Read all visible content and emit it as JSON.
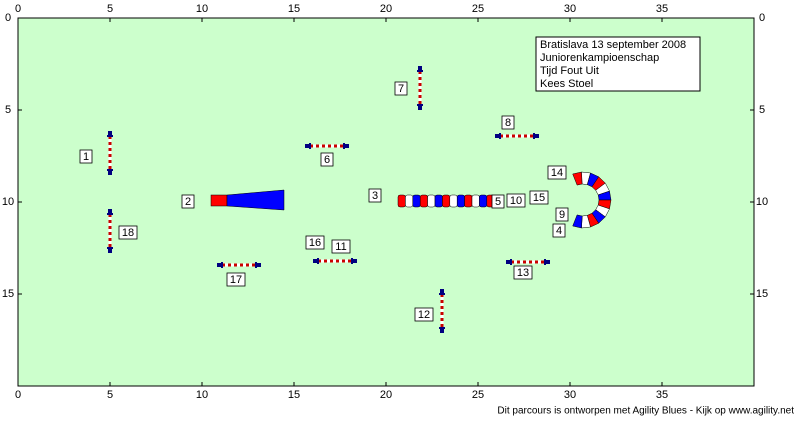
{
  "axis": {
    "xticks": [
      0,
      5,
      10,
      15,
      20,
      25,
      30,
      35
    ],
    "yticks": [
      0,
      5,
      10,
      15
    ]
  },
  "info": {
    "lines": [
      "Bratislava 13 september 2008",
      "Juniorenkampioenschap",
      "Tijd Fout Uit",
      "Kees Stoel"
    ]
  },
  "obstacles": {
    "labels": [
      "1",
      "2",
      "3",
      "4",
      "5",
      "6",
      "7",
      "8",
      "9",
      "10",
      "11",
      "12",
      "13",
      "14",
      "15",
      "16",
      "17",
      "18"
    ]
  },
  "footer": "Dit parcours is ontworpen met Agility Blues - Kijk op www.agility.net"
}
